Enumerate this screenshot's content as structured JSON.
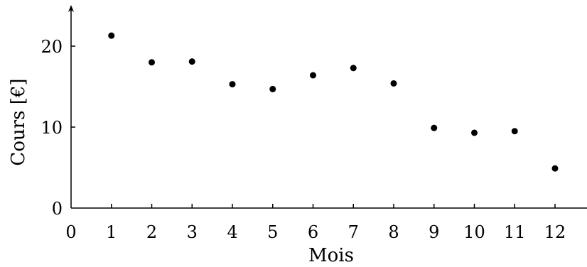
{
  "chart_data": {
    "type": "scatter",
    "title": "",
    "xlabel": "Mois",
    "ylabel": "Cours [€]",
    "xlim": [
      0,
      12.5
    ],
    "ylim": [
      0,
      24
    ],
    "x_ticks": [
      0,
      1,
      2,
      3,
      4,
      5,
      6,
      7,
      8,
      9,
      10,
      11,
      12
    ],
    "y_ticks": [
      0,
      10,
      20
    ],
    "grid": false,
    "marker_color": "#000000",
    "series": [
      {
        "x": [
          1,
          2,
          3,
          4,
          5,
          6,
          7,
          8,
          9,
          10,
          11,
          12
        ],
        "y": [
          21.3,
          18.0,
          18.1,
          15.3,
          14.7,
          16.4,
          17.3,
          15.4,
          9.9,
          9.3,
          9.5,
          4.9
        ]
      }
    ]
  }
}
